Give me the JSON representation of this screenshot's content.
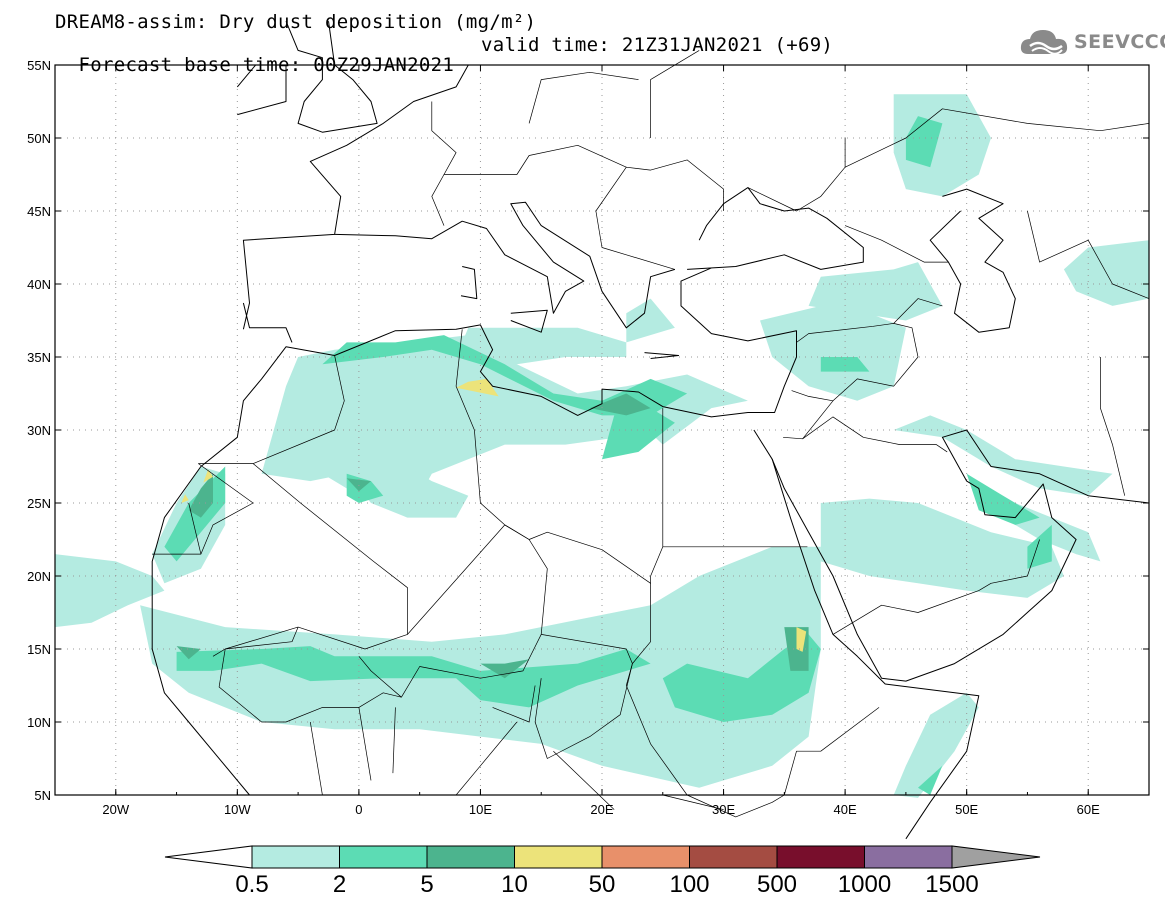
{
  "header": {
    "title": "DREAM8-assim: Dry dust deposition (mg/m²)",
    "base_time": "Forecast base time: 00Z29JAN2021",
    "valid_time": "valid time: 21Z31JAN2021 (+69)"
  },
  "logo": {
    "text": "SEEVCCC",
    "icon": "cloud-logo-icon"
  },
  "map": {
    "lon_range": [
      -25,
      65
    ],
    "lat_range": [
      5,
      55
    ],
    "lat_ticks": [
      "55N",
      "50N",
      "45N",
      "40N",
      "35N",
      "30N",
      "25N",
      "20N",
      "15N",
      "10N",
      "5N"
    ],
    "lat_values": [
      55,
      50,
      45,
      40,
      35,
      30,
      25,
      20,
      15,
      10,
      5
    ],
    "lon_ticks": [
      "20W",
      "10W",
      "0",
      "10E",
      "20E",
      "30E",
      "40E",
      "50E",
      "60E"
    ],
    "lon_values": [
      -20,
      -10,
      0,
      10,
      20,
      30,
      40,
      50,
      60
    ],
    "grid": true
  },
  "colorbar": {
    "labels": [
      "0.5",
      "2",
      "5",
      "10",
      "50",
      "100",
      "500",
      "1000",
      "1500"
    ],
    "colors": [
      "#b4ebe1",
      "#5cdcb4",
      "#4cb48e",
      "#ece37a",
      "#e8906a",
      "#a44c42",
      "#780e2c",
      "#8a6ea0",
      "#a0a0a0"
    ]
  }
}
